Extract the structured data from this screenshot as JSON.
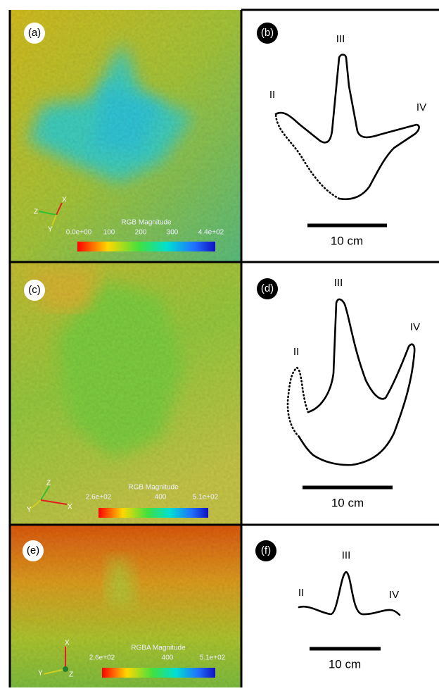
{
  "panels": [
    {
      "label": "(a)",
      "colorbar": {
        "title": "RGB Magnitude",
        "ticks": [
          "0.0e+00",
          "100",
          "200",
          "300",
          "4.4e+02"
        ]
      },
      "axes": [
        "Z",
        "X",
        "Y"
      ]
    },
    {
      "label": "(b)",
      "digits": [
        "II",
        "III",
        "IV"
      ],
      "scale": "10 cm"
    },
    {
      "label": "(c)",
      "colorbar": {
        "title": "RGB Magnitude",
        "ticks": [
          "2.6e+02",
          "400",
          "5.1e+02"
        ]
      },
      "axes": [
        "Z",
        "Y",
        "X"
      ]
    },
    {
      "label": "(d)",
      "digits": [
        "II",
        "III",
        "IV"
      ],
      "scale": "10 cm"
    },
    {
      "label": "(e)",
      "colorbar": {
        "title": "RGBA Magnitude",
        "ticks": [
          "2.6e+02",
          "400",
          "5.1e+02"
        ]
      },
      "axes": [
        "X",
        "Y",
        "Z"
      ]
    },
    {
      "label": "(f)",
      "digits": [
        "II",
        "III",
        "IV"
      ],
      "scale": "10 cm"
    }
  ]
}
